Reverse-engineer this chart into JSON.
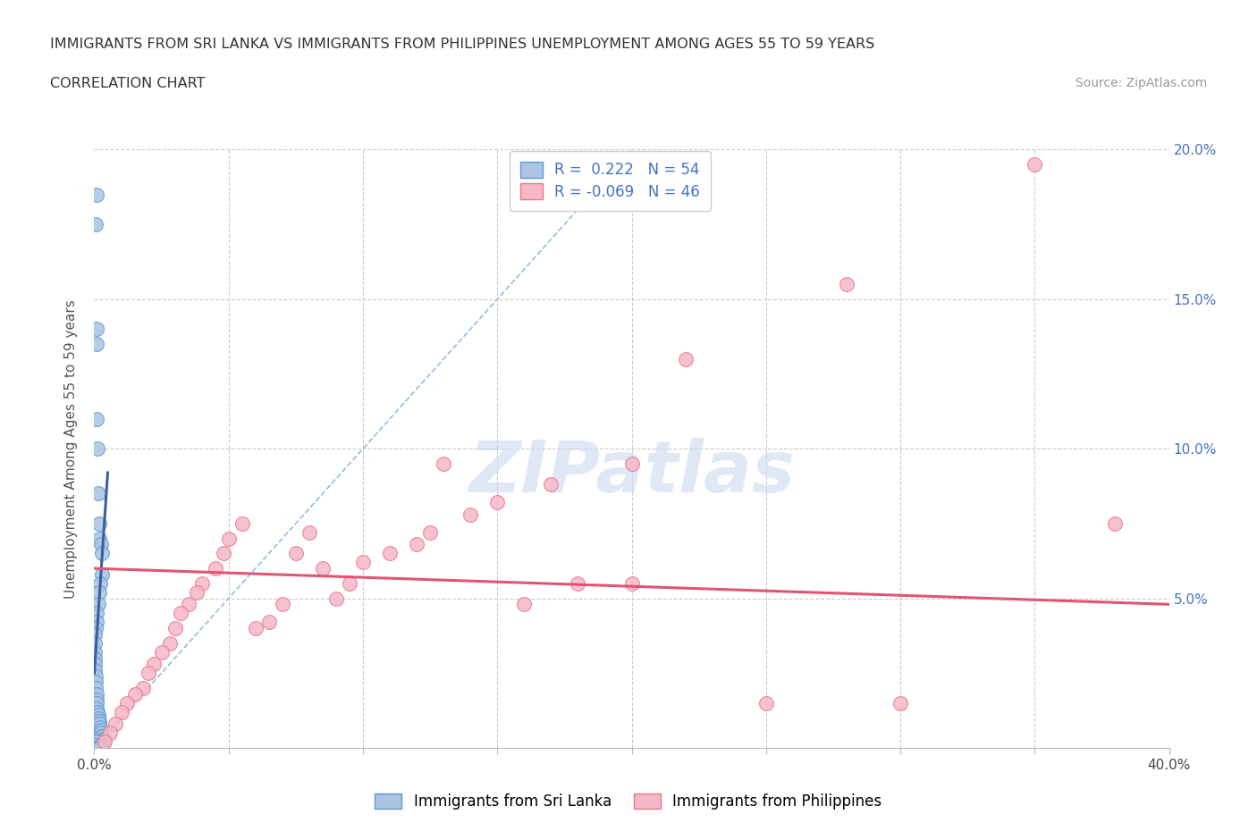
{
  "title_line1": "IMMIGRANTS FROM SRI LANKA VS IMMIGRANTS FROM PHILIPPINES UNEMPLOYMENT AMONG AGES 55 TO 59 YEARS",
  "title_line2": "CORRELATION CHART",
  "source_text": "Source: ZipAtlas.com",
  "ylabel": "Unemployment Among Ages 55 to 59 years",
  "xlim": [
    0.0,
    0.4
  ],
  "ylim": [
    0.0,
    0.2
  ],
  "sri_lanka_color": "#aac4e2",
  "sri_lanka_edge": "#5b9bd5",
  "philippines_color": "#f5b8c8",
  "philippines_edge": "#e8788a",
  "trend_sri_lanka_color": "#3a5fa0",
  "trend_philippines_color": "#e05575",
  "diag_line_color": "#99bbdd",
  "R_sri_lanka": 0.222,
  "N_sri_lanka": 54,
  "R_philippines": -0.069,
  "N_philippines": 46,
  "legend_label_1": "Immigrants from Sri Lanka",
  "legend_label_2": "Immigrants from Philippines",
  "watermark": "ZIPatlas",
  "watermark_color": "#ccd9f0",
  "background_color": "#ffffff",
  "grid_color": "#cccccc",
  "sl_x": [
    0.001,
    0.0005,
    0.001,
    0.0008,
    0.001,
    0.0012,
    0.0015,
    0.002,
    0.0018,
    0.0025,
    0.003,
    0.0028,
    0.0022,
    0.002,
    0.0015,
    0.001,
    0.0008,
    0.0005,
    0.0003,
    0.0002,
    0.0001,
    0.0001,
    0.0002,
    0.0003,
    0.0004,
    0.0005,
    0.0006,
    0.0007,
    0.0008,
    0.0009,
    0.001,
    0.0012,
    0.0014,
    0.0016,
    0.0018,
    0.002,
    0.0022,
    0.0024,
    0.0026,
    0.0028,
    0.003,
    0.0032,
    0.0034,
    0.0036,
    0.0015,
    0.001,
    0.0008,
    0.0005,
    0.0003,
    0.0002,
    0.0001,
    0.001,
    0.0015,
    0.002
  ],
  "sl_y": [
    0.185,
    0.175,
    0.14,
    0.135,
    0.11,
    0.1,
    0.085,
    0.075,
    0.07,
    0.068,
    0.065,
    0.058,
    0.055,
    0.052,
    0.048,
    0.045,
    0.042,
    0.04,
    0.038,
    0.035,
    0.032,
    0.03,
    0.028,
    0.026,
    0.024,
    0.022,
    0.02,
    0.018,
    0.016,
    0.015,
    0.013,
    0.012,
    0.011,
    0.01,
    0.009,
    0.008,
    0.007,
    0.006,
    0.005,
    0.004,
    0.004,
    0.003,
    0.003,
    0.002,
    0.002,
    0.002,
    0.001,
    0.001,
    0.001,
    0.0,
    0.0,
    0.0,
    0.0,
    0.0
  ],
  "ph_x": [
    0.35,
    0.28,
    0.22,
    0.2,
    0.17,
    0.15,
    0.14,
    0.13,
    0.125,
    0.12,
    0.11,
    0.1,
    0.095,
    0.09,
    0.085,
    0.08,
    0.075,
    0.07,
    0.065,
    0.06,
    0.055,
    0.05,
    0.048,
    0.045,
    0.04,
    0.038,
    0.035,
    0.032,
    0.03,
    0.028,
    0.025,
    0.022,
    0.02,
    0.018,
    0.015,
    0.012,
    0.01,
    0.008,
    0.006,
    0.004,
    0.38,
    0.3,
    0.25,
    0.2,
    0.18,
    0.16
  ],
  "ph_y": [
    0.195,
    0.155,
    0.13,
    0.095,
    0.088,
    0.082,
    0.078,
    0.095,
    0.072,
    0.068,
    0.065,
    0.062,
    0.055,
    0.05,
    0.06,
    0.072,
    0.065,
    0.048,
    0.042,
    0.04,
    0.075,
    0.07,
    0.065,
    0.06,
    0.055,
    0.052,
    0.048,
    0.045,
    0.04,
    0.035,
    0.032,
    0.028,
    0.025,
    0.02,
    0.018,
    0.015,
    0.012,
    0.008,
    0.005,
    0.002,
    0.075,
    0.015,
    0.015,
    0.055,
    0.055,
    0.048
  ]
}
